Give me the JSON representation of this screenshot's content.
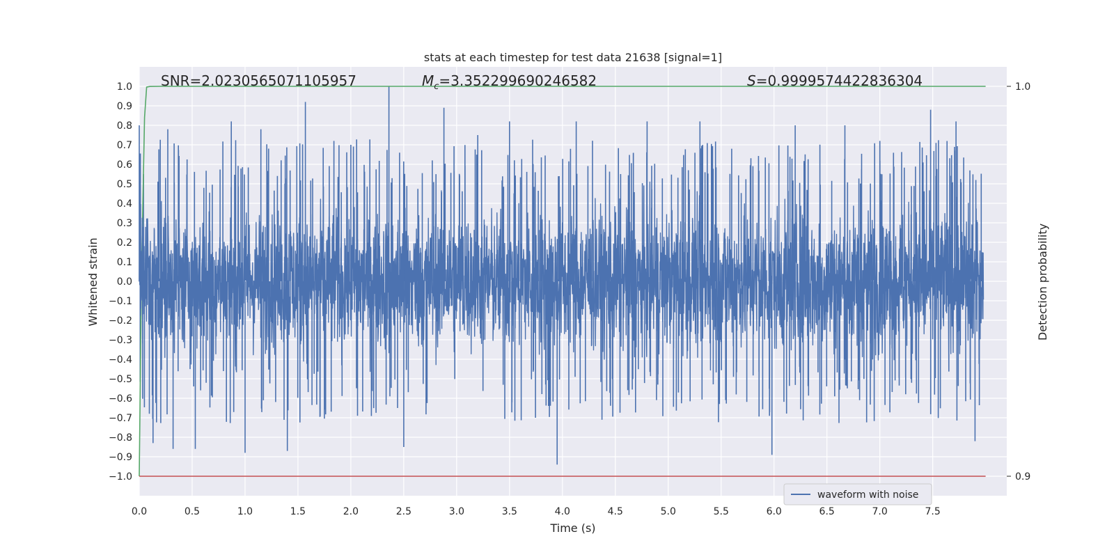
{
  "chart_data": {
    "type": "line",
    "title": "stats at each timestep for test data 21638 [signal=1]",
    "xlabel": "Time (s)",
    "ylabel": "Whitened strain",
    "y2label": "Detection probability",
    "xlim": [
      0.0,
      8.0
    ],
    "ylim": [
      -1.1,
      1.1
    ],
    "y2lim": [
      0.8995,
      1.0015
    ],
    "x_ticks": [
      "0.0",
      "0.5",
      "1.0",
      "1.5",
      "2.0",
      "2.5",
      "3.0",
      "3.5",
      "4.0",
      "4.5",
      "5.0",
      "5.5",
      "6.0",
      "6.5",
      "7.0",
      "7.5"
    ],
    "y_ticks": [
      "1.0",
      "0.9",
      "0.8",
      "0.7",
      "0.6",
      "0.5",
      "0.4",
      "0.3",
      "0.2",
      "0.1",
      "0.0",
      "−0.1",
      "−0.2",
      "−0.3",
      "−0.4",
      "−0.5",
      "−0.6",
      "−0.7",
      "−0.8",
      "−0.9",
      "−1.0"
    ],
    "y2_ticks": [
      "1.0",
      "0.9"
    ],
    "annotations": {
      "snr": "SNR=2.0230565071105957",
      "mc_symbol": "M",
      "mc_sub": "c",
      "mc_value": "=3.352299690246582",
      "s_symbol": "S",
      "s_value": "=0.9999574422836304"
    },
    "legend": {
      "entries": [
        "waveform with noise"
      ],
      "placement": "lower-center"
    },
    "grid": true,
    "series": [
      {
        "name": "waveform with noise",
        "axis": "left",
        "color": "#4c72b0",
        "description": "dense whitened strain noise, roughly within ±0.5 with spikes to ±0.9",
        "peaks_x": [
          0.0,
          0.04,
          0.13,
          0.27,
          0.32,
          0.53,
          0.87,
          1.0,
          1.15,
          1.4,
          1.57,
          1.84,
          2.0,
          2.36,
          2.5,
          2.77,
          2.88,
          3.2,
          3.5,
          3.95,
          4.13,
          4.55,
          4.8,
          5.3,
          5.6,
          5.98,
          6.2,
          6.67,
          7.0,
          7.48,
          7.72,
          7.9
        ],
        "peaks_y": [
          0.8,
          0.55,
          -0.83,
          0.78,
          -0.86,
          -0.86,
          0.82,
          -0.88,
          0.78,
          -0.87,
          0.92,
          0.72,
          0.7,
          1.0,
          -0.85,
          0.62,
          0.89,
          0.75,
          0.82,
          -0.94,
          0.82,
          0.55,
          0.82,
          0.82,
          0.68,
          -0.89,
          0.8,
          0.8,
          0.72,
          0.88,
          0.82,
          -0.82
        ]
      },
      {
        "name": "detection probability",
        "axis": "right",
        "color": "#55a868",
        "x": [
          0.0,
          0.02,
          0.05,
          0.07,
          0.1,
          0.2,
          8.0
        ],
        "values": [
          0.9,
          0.95,
          0.992,
          0.9998,
          0.99996,
          1.0,
          1.0
        ]
      },
      {
        "name": "threshold",
        "axis": "right",
        "color": "#c44e52",
        "x": [
          0.0,
          8.0
        ],
        "values": [
          0.9,
          0.9
        ]
      }
    ]
  },
  "colors": {
    "background": "#eaeaf2",
    "grid": "#ffffff",
    "strain": "#4c72b0",
    "probability": "#55a868",
    "threshold": "#c44e52"
  }
}
